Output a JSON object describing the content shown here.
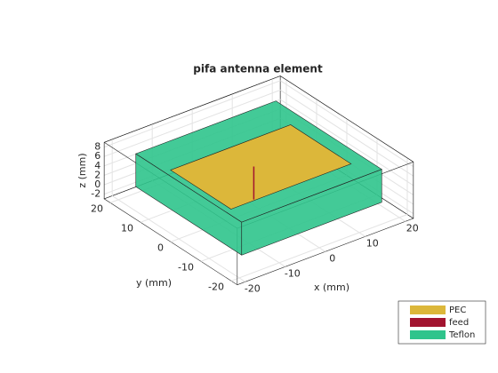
{
  "chart_data": {
    "type": "box3d",
    "title": "pifa antenna element",
    "xlabel": "x (mm)",
    "ylabel": "y (mm)",
    "zlabel": "z (mm)",
    "xlim": [
      -22,
      22
    ],
    "ylim": [
      -22,
      22
    ],
    "zlim": [
      -3,
      9
    ],
    "xticks": [
      -20,
      -10,
      0,
      10,
      20
    ],
    "yticks": [
      -20,
      -10,
      0,
      10,
      20
    ],
    "zticks": [
      -2,
      0,
      2,
      4,
      6,
      8
    ],
    "grid": true,
    "legend": "lower right",
    "series": [
      {
        "name": "PEC",
        "color": "#dcb73a",
        "x": [
          -16,
          14
        ],
        "y": [
          -12,
          8
        ],
        "z": [
          7,
          7
        ]
      },
      {
        "name": "feed",
        "color": "#a2142f",
        "x": [
          -2,
          -2
        ],
        "y": [
          -1,
          -1
        ],
        "z": [
          0,
          7
        ]
      },
      {
        "name": "Teflon",
        "color": "#2fc48c",
        "x": [
          -17.5,
          17.5
        ],
        "y": [
          -17.5,
          17.5
        ],
        "z": [
          0,
          7
        ]
      }
    ]
  }
}
